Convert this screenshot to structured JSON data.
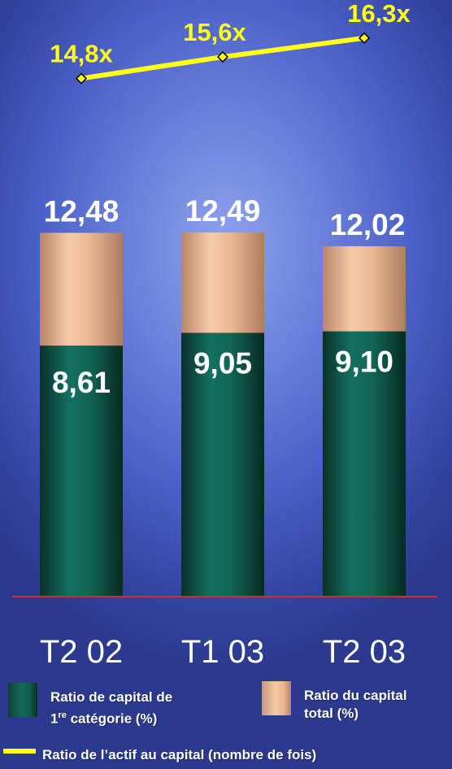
{
  "chart_data": {
    "type": "bar",
    "stacked": true,
    "categories": [
      "T2 02",
      "T1 03",
      "T2 03"
    ],
    "series": [
      {
        "name": "Ratio de capital de 1re catégorie (%)",
        "values": [
          8.61,
          9.05,
          9.1
        ],
        "labels": [
          "8,61",
          "9,05",
          "9,10"
        ],
        "color": "#0f5a4c"
      },
      {
        "name": "Ratio du capital total (%)",
        "totals": [
          12.48,
          12.49,
          12.02
        ],
        "labels": [
          "12,48",
          "12,49",
          "12,02"
        ],
        "color": "#f0c09a"
      },
      {
        "name": "Ratio de l’actif au capital (nombre de fois)",
        "type": "line",
        "values": [
          14.8,
          15.6,
          16.3
        ],
        "labels": [
          "14,8x",
          "15,6x",
          "16,3x"
        ],
        "color": "#ffff1a"
      }
    ],
    "bar_axis_range": [
      0,
      14.5
    ],
    "line_axis_range": [
      10.2,
      17.2
    ],
    "grid": false,
    "legend_position": "bottom",
    "baseline_color": "#d6283b"
  },
  "legend": {
    "tier1_line1": "Ratio de capital de",
    "tier1_line2_num": "1",
    "tier1_line2_sup": "re",
    "tier1_line2_rest": " catégorie (%)",
    "total_line1": "Ratio du capital",
    "total_line2": "total (%)",
    "leverage": "Ratio de l’actif au capital (nombre de fois)"
  }
}
